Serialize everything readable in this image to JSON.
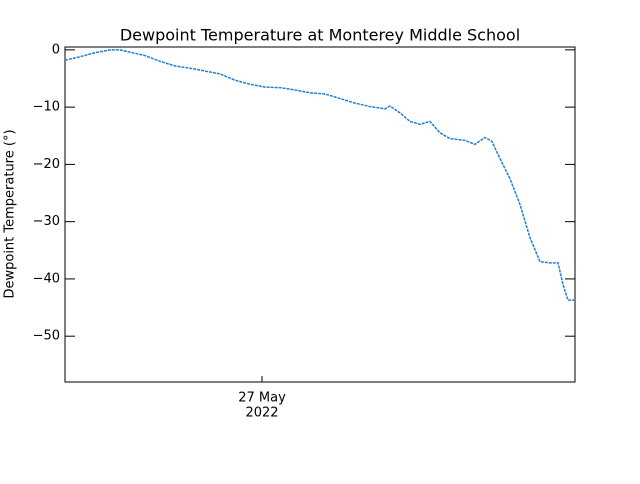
{
  "chart_data": {
    "type": "line",
    "title": "Dewpoint Temperature at Monterey Middle School",
    "y_label": "Dewpoint Temperature (°)",
    "x": [
      0,
      15,
      30,
      45,
      55,
      65,
      80,
      95,
      110,
      125,
      140,
      155,
      170,
      185,
      200,
      215,
      230,
      245,
      260,
      275,
      290,
      305,
      320,
      325,
      335,
      345,
      355,
      365,
      375,
      385,
      400,
      410,
      420,
      427,
      435,
      445,
      455,
      465,
      475,
      485,
      493,
      498,
      503,
      510
    ],
    "series": [
      {
        "name": "Dewpoint",
        "color": "#1f7fd6",
        "values": [
          -1.8,
          -1.2,
          -0.5,
          0,
          0,
          -0.4,
          -1,
          -2,
          -2.8,
          -3.2,
          -3.7,
          -4.2,
          -5.3,
          -6,
          -6.5,
          -6.6,
          -7,
          -7.5,
          -7.7,
          -8.5,
          -9.3,
          -9.9,
          -10.3,
          -9.8,
          -11,
          -12.5,
          -13,
          -12.5,
          -14.5,
          -15.5,
          -15.8,
          -16.5,
          -15.3,
          -16,
          -19,
          -22.5,
          -27,
          -32.8,
          -37,
          -37.2,
          -37.2,
          -41,
          -43.7,
          -43.7
        ]
      }
    ],
    "xlim": [
      0,
      510
    ],
    "xticks": [
      {
        "value": 197,
        "label": "27 May",
        "sublabel": "2022"
      }
    ],
    "ylim": [
      -58,
      0.5
    ],
    "yticks": [
      {
        "value": 0,
        "label": "0"
      },
      {
        "value": -10,
        "label": "−10"
      },
      {
        "value": -20,
        "label": "−20"
      },
      {
        "value": -30,
        "label": "−30"
      },
      {
        "value": -40,
        "label": "−40"
      },
      {
        "value": -50,
        "label": "−50"
      }
    ]
  }
}
